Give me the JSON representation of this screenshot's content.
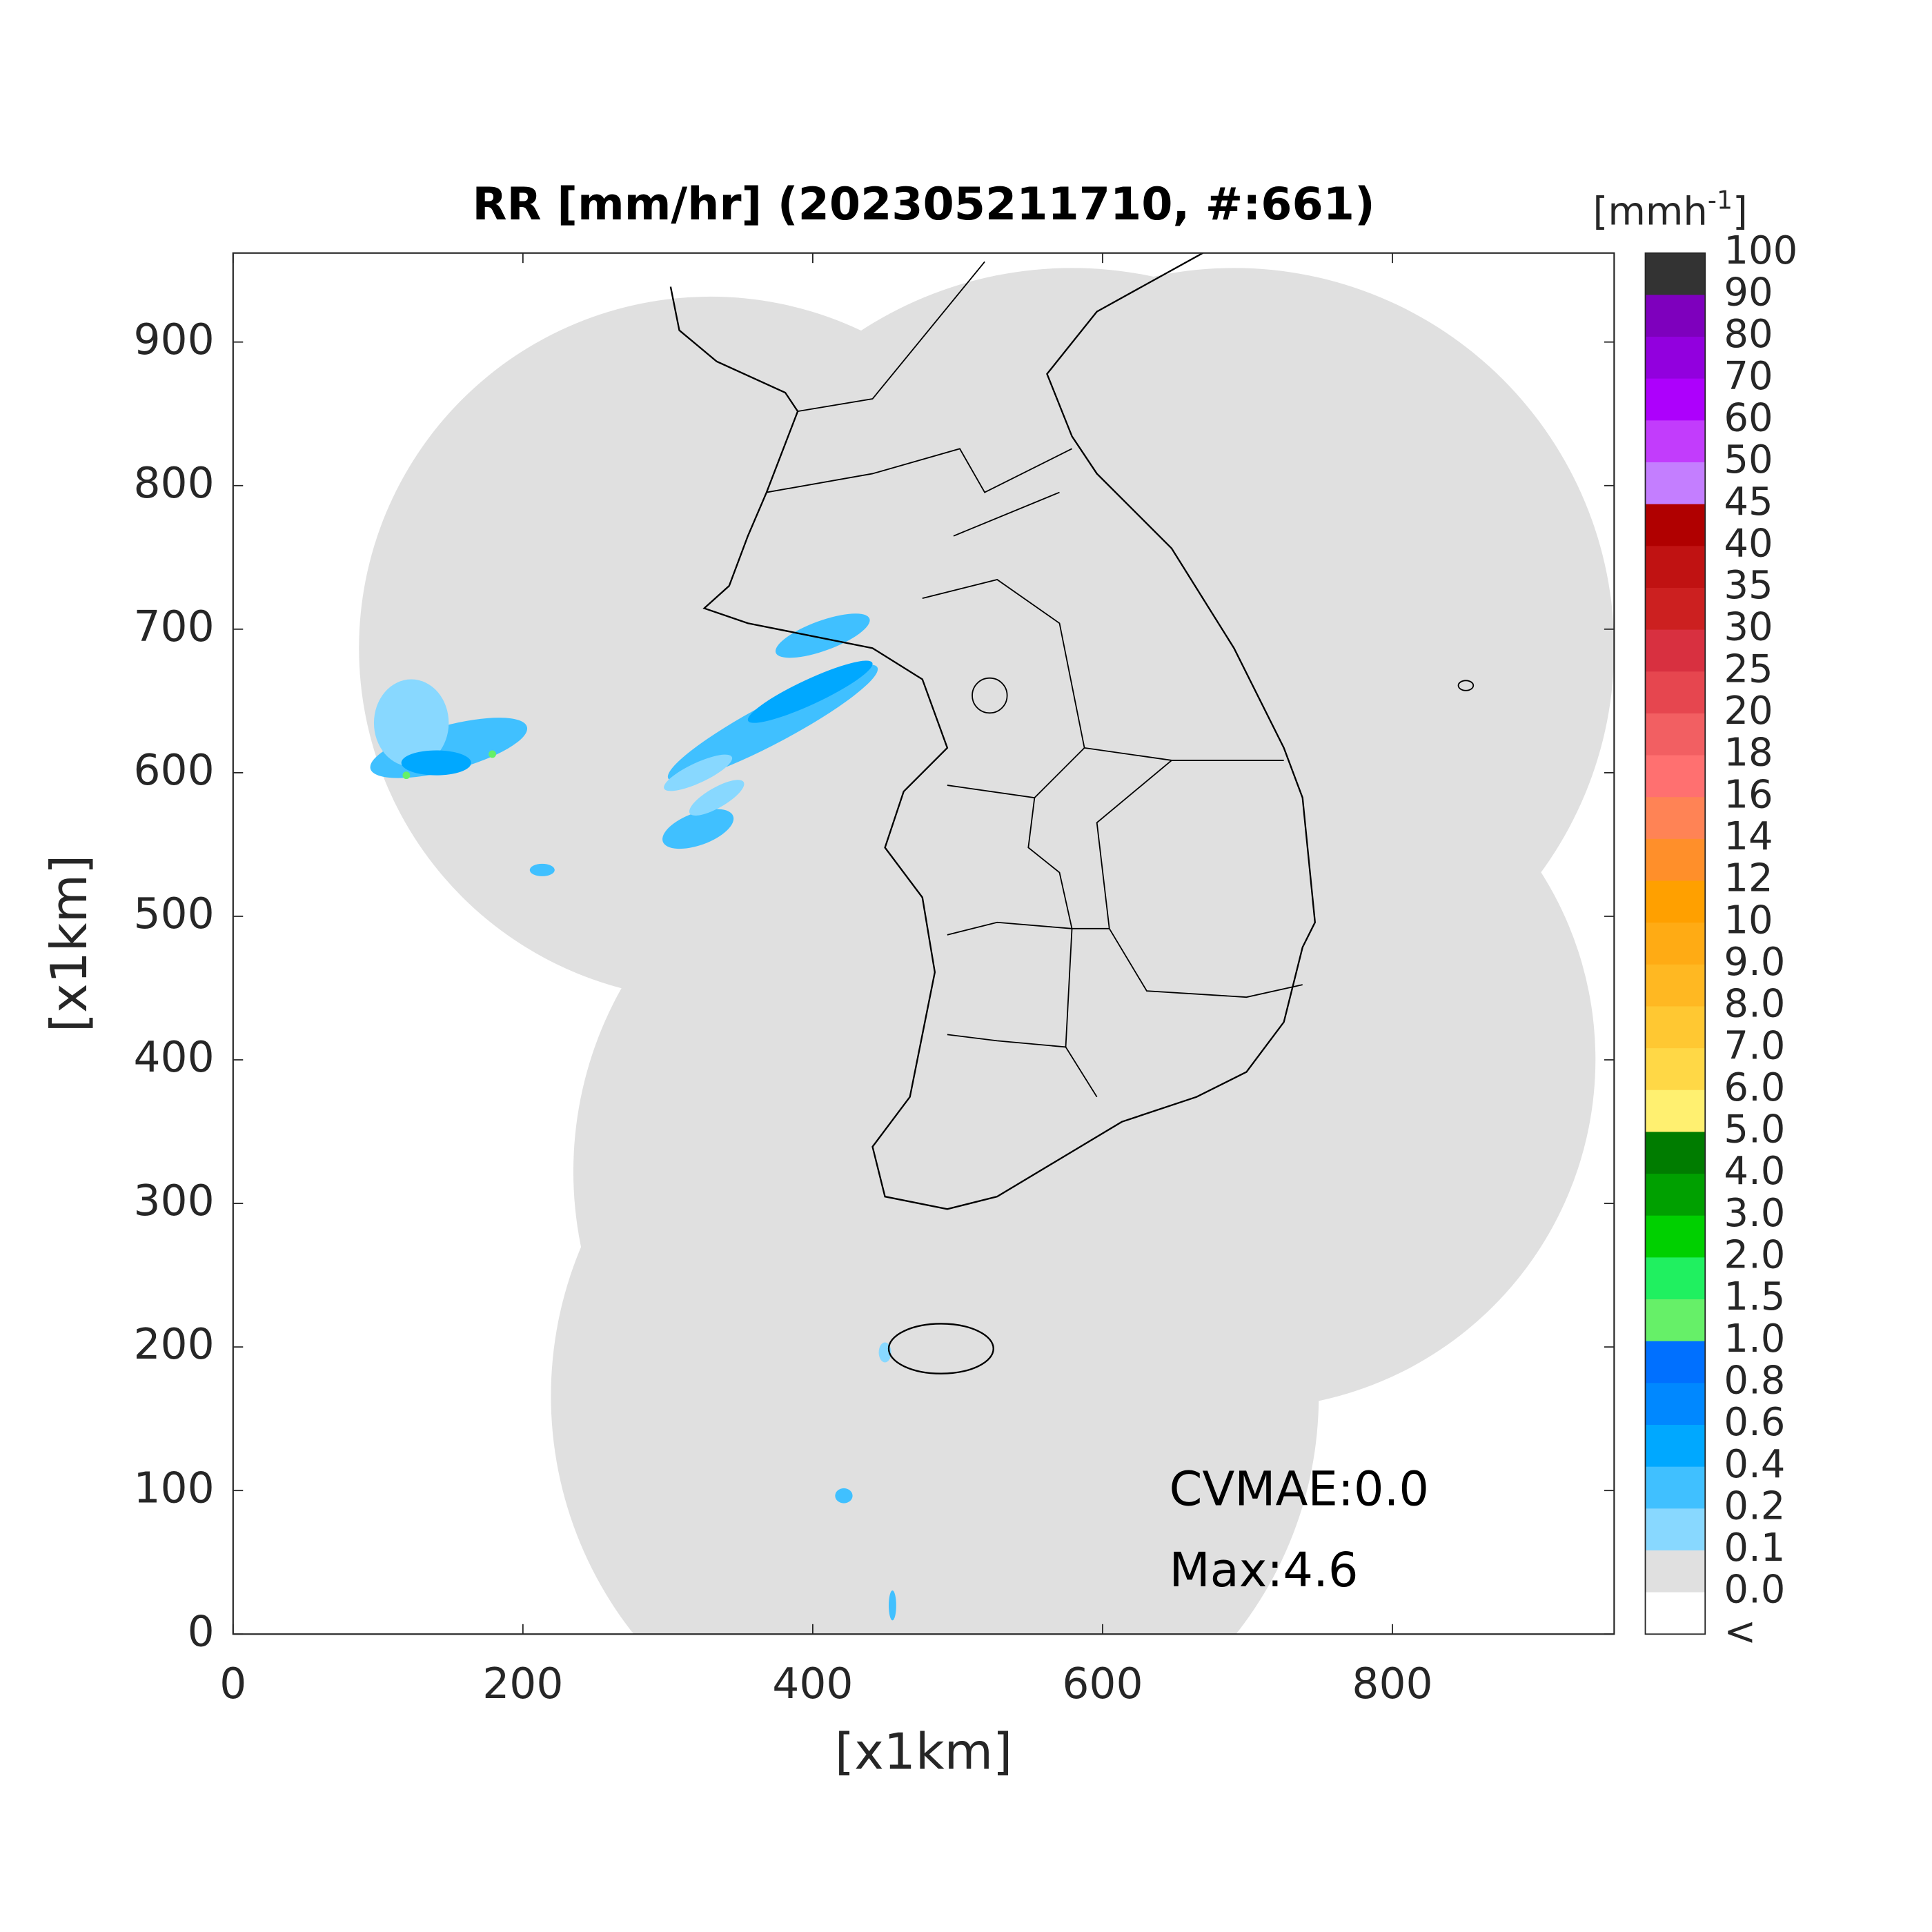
{
  "title": "RR [mm/hr] (202305211710, #:661)",
  "x_label": "[x1km]",
  "y_label": "[x1km]",
  "xlim": [
    0,
    953
  ],
  "ylim": [
    0,
    962
  ],
  "xticks": [
    0,
    200,
    400,
    600,
    800
  ],
  "yticks": [
    0,
    100,
    200,
    300,
    400,
    500,
    600,
    700,
    800,
    900
  ],
  "annotations": [
    "CVMAE:0.0",
    "Max:4.6"
  ],
  "colorbar": {
    "unit": {
      "text": "[mmh",
      "superscript": "-1",
      "close": "]"
    },
    "labels": [
      100,
      90,
      80,
      70,
      60,
      50,
      45,
      40,
      35,
      30,
      25,
      20,
      18,
      16,
      14,
      12,
      10,
      {
        "value": 9,
        "label": "9.0"
      },
      {
        "value": 8,
        "label": "8.0"
      },
      {
        "value": 7,
        "label": "7.0"
      },
      {
        "value": 6,
        "label": "6.0"
      },
      {
        "value": 5,
        "label": "5.0"
      },
      {
        "value": 4,
        "label": "4.0"
      },
      {
        "value": 3,
        "label": "3.0"
      },
      {
        "value": 2,
        "label": "2.0"
      },
      1.5,
      {
        "value": 1,
        "label": "1.0"
      },
      0.8,
      0.6,
      0.4,
      0.2,
      0.1,
      {
        "value": 0,
        "label": "0.0"
      },
      "<"
    ],
    "colors": [
      "#333333",
      "#7e00bd",
      "#9200de",
      "#ad00fc",
      "#c23cfc",
      "#c47eff",
      "#b00000",
      "#c01212",
      "#cc2020",
      "#d83040",
      "#e6464f",
      "#f25f62",
      "#ff7070",
      "#ff8355",
      "#ff8f2a",
      "#ffa000",
      "#ffab14",
      "#ffb822",
      "#ffc832",
      "#ffd846",
      "#fff070",
      "#007c00",
      "#00a000",
      "#00d000",
      "#20f060",
      "#66f068",
      "#0070ff",
      "#0088ff",
      "#00a8ff",
      "#40c0ff",
      "#88d8ff",
      "#e0e0e0",
      "#ffffff"
    ]
  }
}
